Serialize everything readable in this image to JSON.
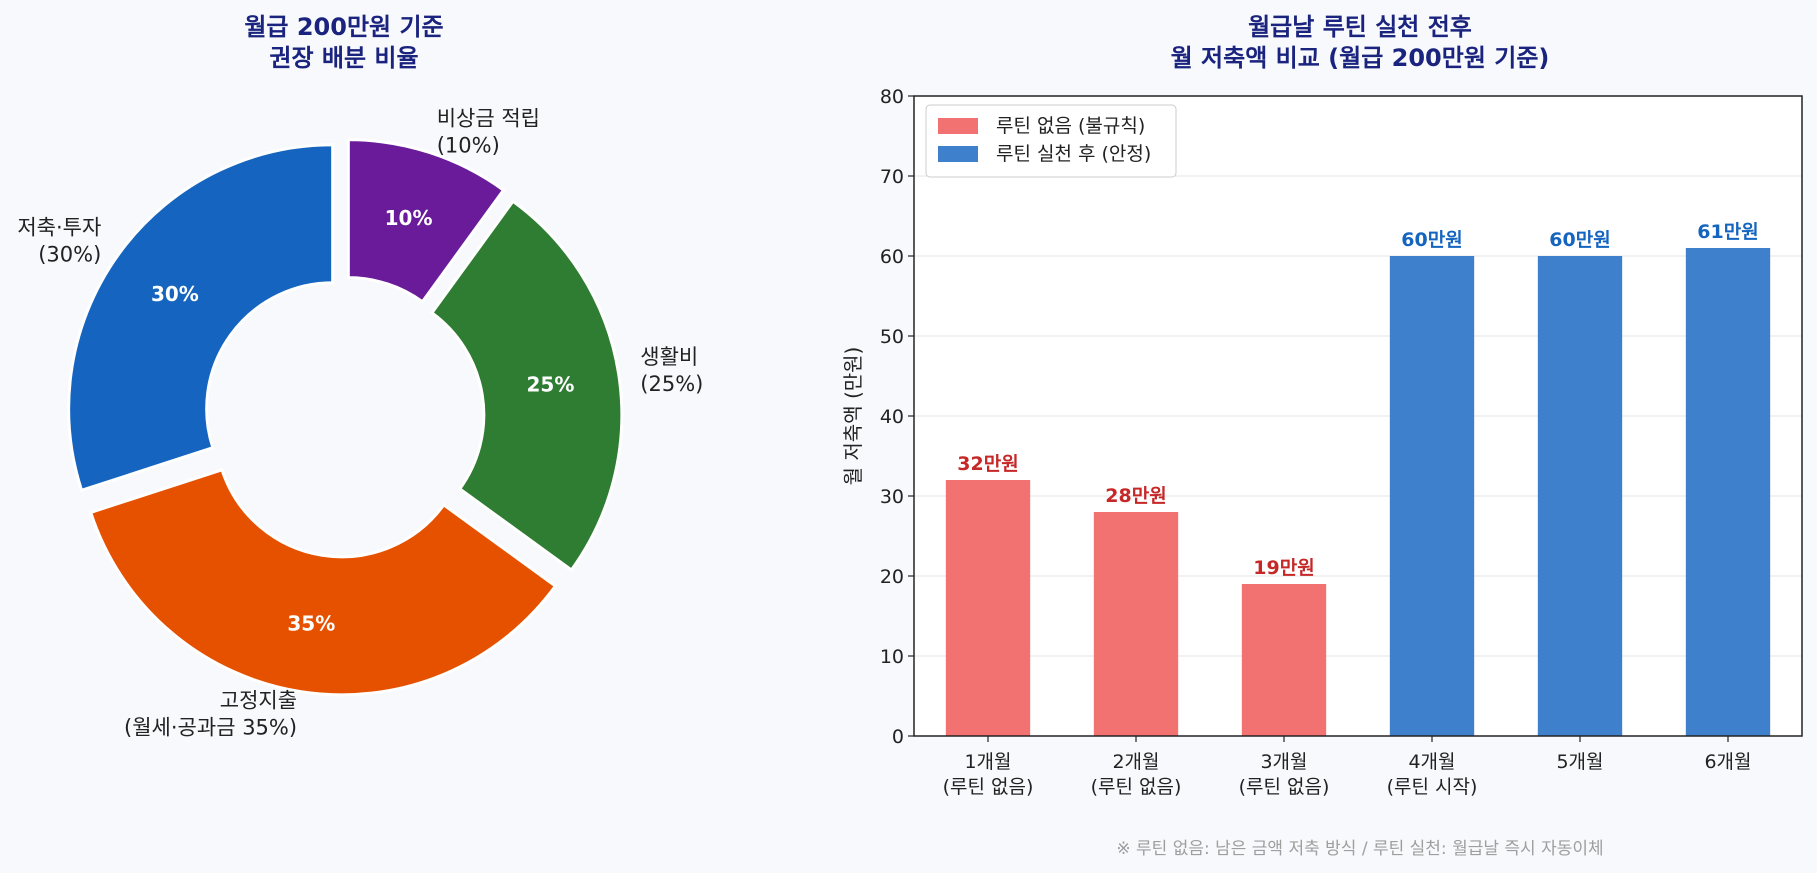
{
  "colors": {
    "title": "#1a237e",
    "savings": "#1565c0",
    "fixed": "#e65100",
    "living": "#2e7d32",
    "emergency": "#6a1b9a",
    "no_routine": "#f27272",
    "routine": "#3f80cc",
    "no_routine_label": "#c62828",
    "routine_label": "#1565c0",
    "note": "#9e9e9e",
    "grid": "#e6e6e6"
  },
  "chart_data": [
    {
      "type": "pie",
      "style": "donut",
      "title": [
        "월급 200만원 기준",
        "권장 배분 비율"
      ],
      "slices": [
        {
          "key": "emergency",
          "label": [
            "비상금 적립",
            "(10%)"
          ],
          "pct_label": "10%",
          "value": 10,
          "color": "#6a1b9a"
        },
        {
          "key": "living",
          "label": [
            "생활비",
            "(25%)"
          ],
          "pct_label": "25%",
          "value": 25,
          "color": "#2e7d32"
        },
        {
          "key": "fixed",
          "label": [
            "고정지출",
            "(월세·공과금 35%)"
          ],
          "pct_label": "35%",
          "value": 35,
          "color": "#e65100"
        },
        {
          "key": "savings",
          "label": [
            "저축·투자",
            "(30%)"
          ],
          "pct_label": "30%",
          "value": 30,
          "color": "#1565c0"
        }
      ]
    },
    {
      "type": "bar",
      "title": [
        "월급날 루틴 실천 전후",
        "월 저축액 비교 (월급 200만원 기준)"
      ],
      "ylabel": "월 저축액 (만원)",
      "xlabel": "",
      "ylim": [
        0,
        80
      ],
      "yticks": [
        0,
        10,
        20,
        30,
        40,
        50,
        60,
        70,
        80
      ],
      "grid": true,
      "legend_position": "top-left",
      "legend": [
        {
          "label": "루틴 없음 (불규칙)",
          "color": "#f27272"
        },
        {
          "label": "루틴 실천 후 (안정)",
          "color": "#3f80cc"
        }
      ],
      "categories": [
        [
          "1개월",
          "(루틴 없음)"
        ],
        [
          "2개월",
          "(루틴 없음)"
        ],
        [
          "3개월",
          "(루틴 없음)"
        ],
        [
          "4개월",
          "(루틴 시작)"
        ],
        [
          "5개월"
        ],
        [
          "6개월"
        ]
      ],
      "values": [
        32,
        28,
        19,
        60,
        60,
        61
      ],
      "value_labels": [
        "32만원",
        "28만원",
        "19만원",
        "60만원",
        "60만원",
        "61만원"
      ],
      "series_index": [
        0,
        0,
        0,
        1,
        1,
        1
      ]
    }
  ],
  "footnote": "※ 루틴 없음: 남은 금액 저축 방식 / 루틴 실천: 월급날 즉시 자동이체"
}
